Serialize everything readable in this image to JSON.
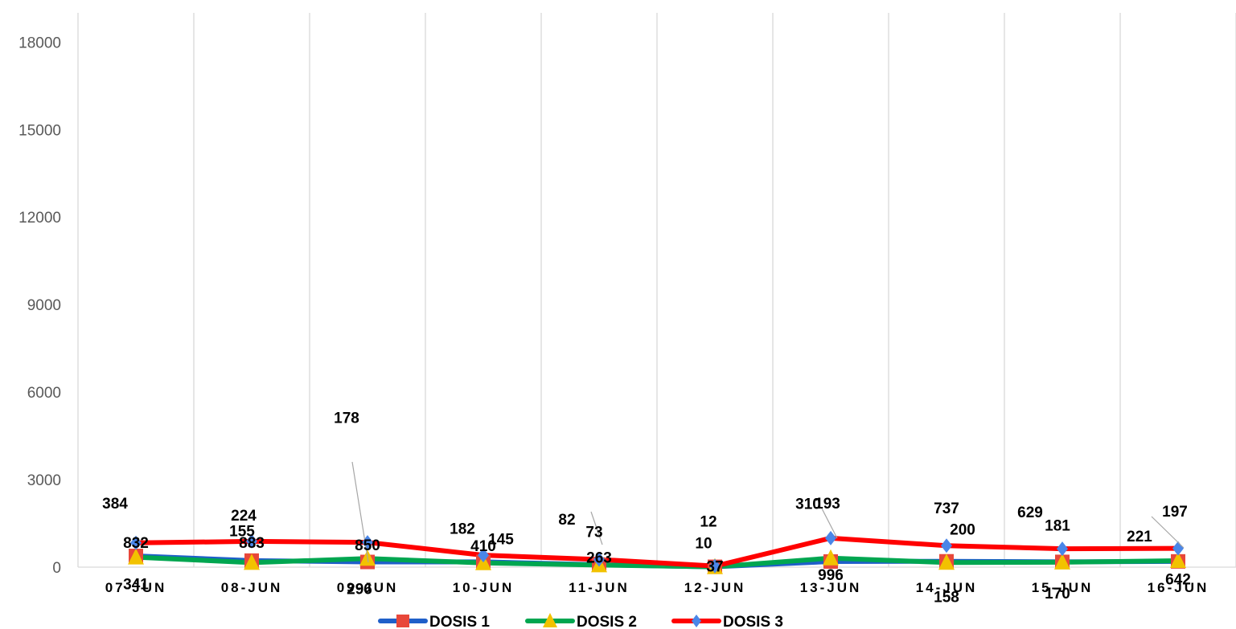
{
  "chart_data": {
    "type": "line",
    "categories": [
      "07-JUN",
      "08-JUN",
      "09-JUN",
      "10-JUN",
      "11-JUN",
      "12-JUN",
      "13-JUN",
      "14-JUN",
      "15-JUN",
      "16-JUN"
    ],
    "yticks": [
      "0",
      "3000",
      "6000",
      "9000",
      "12000",
      "15000",
      "18000"
    ],
    "ylim": [
      0,
      19000
    ],
    "grid": "vertical",
    "legend_position": "bottom",
    "series": [
      {
        "name": "DOSIS 1",
        "color": "#1f5fc9",
        "marker": "square",
        "marker_color": "#e8473a",
        "values": [
          384,
          224,
          178,
          182,
          82,
          12,
          193,
          200,
          181,
          197
        ],
        "labels": [
          "384",
          "224",
          "178",
          "182",
          "82",
          "12",
          "193",
          "200",
          "181",
          "197"
        ]
      },
      {
        "name": "DOSIS 2",
        "color": "#00a650",
        "marker": "triangle",
        "marker_color": "#f2c200",
        "values": [
          341,
          155,
          296,
          145,
          73,
          10,
          310,
          158,
          170,
          221
        ],
        "labels": [
          "341",
          "155",
          "296",
          "145",
          "73",
          "10",
          "310",
          "158",
          "170",
          "221"
        ]
      },
      {
        "name": "DOSIS 3",
        "color": "#ff0000",
        "marker": "diamond",
        "marker_color": "#4a86e8",
        "values": [
          832,
          883,
          850,
          410,
          263,
          37,
          996,
          737,
          629,
          642
        ],
        "labels": [
          "832",
          "883",
          "850",
          "410",
          "263",
          "37",
          "996",
          "737",
          "629",
          "642"
        ]
      }
    ]
  }
}
